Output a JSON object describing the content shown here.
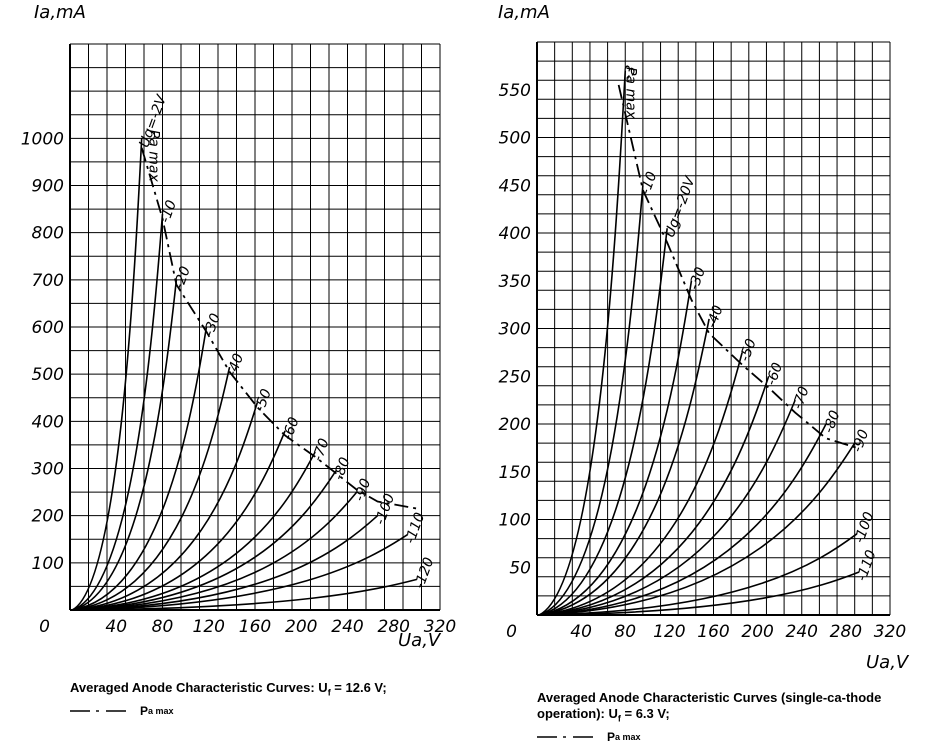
{
  "chart_data": [
    {
      "type": "line",
      "y_axis_label": "Ia,mA",
      "x_axis_label": "Ua,V",
      "x_ticks": [
        "0",
        "40",
        "80",
        "120",
        "160",
        "200",
        "240",
        "280",
        "320"
      ],
      "y_ticks": [
        "100",
        "200",
        "300",
        "400",
        "500",
        "600",
        "700",
        "800",
        "900",
        "1000"
      ],
      "xlim": [
        0,
        320
      ],
      "ylim": [
        0,
        1200
      ],
      "grid": true,
      "caption": "Averaged Anode Characteristic Curves: U",
      "caption_sub": "f",
      "caption_tail": " = 12.6 V;",
      "legend_label": "P",
      "legend_label_sub": "a max",
      "pmax_label": "Pa max",
      "series": [
        {
          "name": "Ug=-2V",
          "knee": [
            62,
            1000
          ]
        },
        {
          "name": "-10",
          "knee": [
            80,
            840
          ]
        },
        {
          "name": "-20",
          "knee": [
            92,
            700
          ]
        },
        {
          "name": "-30",
          "knee": [
            118,
            600
          ]
        },
        {
          "name": "-40",
          "knee": [
            138,
            515
          ]
        },
        {
          "name": "-50",
          "knee": [
            162,
            440
          ]
        },
        {
          "name": "-60",
          "knee": [
            186,
            380
          ]
        },
        {
          "name": "-70",
          "knee": [
            212,
            335
          ]
        },
        {
          "name": "-80",
          "knee": [
            230,
            295
          ]
        },
        {
          "name": "-90",
          "knee": [
            248,
            250
          ]
        },
        {
          "name": "-100",
          "knee": [
            266,
            200
          ]
        },
        {
          "name": "-110",
          "knee": [
            292,
            160
          ]
        },
        {
          "name": "-120",
          "knee": [
            300,
            65
          ]
        }
      ],
      "pmax_curve": [
        [
          62,
          980
        ],
        [
          80,
          830
        ],
        [
          92,
          690
        ],
        [
          118,
          590
        ],
        [
          138,
          505
        ],
        [
          162,
          430
        ],
        [
          186,
          370
        ],
        [
          212,
          325
        ],
        [
          230,
          290
        ],
        [
          248,
          255
        ],
        [
          266,
          230
        ],
        [
          300,
          215
        ]
      ]
    },
    {
      "type": "line",
      "y_axis_label": "Ia,mA",
      "x_axis_label": "Ua,V",
      "x_ticks": [
        "0",
        "40",
        "80",
        "120",
        "160",
        "200",
        "240",
        "280",
        "320"
      ],
      "y_ticks": [
        "50",
        "100",
        "150",
        "200",
        "250",
        "300",
        "350",
        "400",
        "450",
        "500",
        "550"
      ],
      "xlim": [
        0,
        320
      ],
      "ylim": [
        0,
        600
      ],
      "grid": true,
      "caption": "Averaged Anode Characteristic Curves (single-ca-thode operation): U",
      "caption_sub": "f",
      "caption_tail": " = 6.3 V;",
      "legend_label": "P",
      "legend_label_sub": "a max",
      "pmax_label": "Pa max",
      "series": [
        {
          "name": "-3",
          "knee": [
            80,
            570
          ]
        },
        {
          "name": "-10",
          "knee": [
            96,
            450
          ]
        },
        {
          "name": "Ug=-20V",
          "knee": [
            118,
            405
          ]
        },
        {
          "name": "-30",
          "knee": [
            140,
            350
          ]
        },
        {
          "name": "-40",
          "knee": [
            156,
            310
          ]
        },
        {
          "name": "-50",
          "knee": [
            186,
            275
          ]
        },
        {
          "name": "-60",
          "knee": [
            210,
            250
          ]
        },
        {
          "name": "-70",
          "knee": [
            234,
            225
          ]
        },
        {
          "name": "-80",
          "knee": [
            262,
            200
          ]
        },
        {
          "name": "-90",
          "knee": [
            288,
            180
          ]
        },
        {
          "name": "-100",
          "knee": [
            290,
            85
          ]
        },
        {
          "name": "-110",
          "knee": [
            292,
            45
          ]
        }
      ],
      "pmax_curve": [
        [
          74,
          555
        ],
        [
          96,
          445
        ],
        [
          118,
          390
        ],
        [
          140,
          330
        ],
        [
          156,
          295
        ],
        [
          186,
          262
        ],
        [
          210,
          238
        ],
        [
          234,
          212
        ],
        [
          262,
          185
        ],
        [
          290,
          175
        ]
      ]
    }
  ]
}
